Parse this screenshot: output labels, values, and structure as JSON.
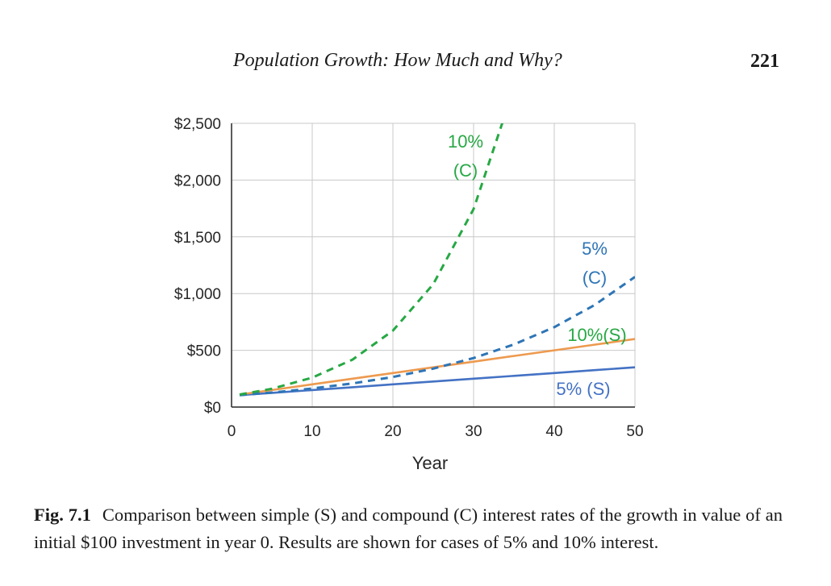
{
  "page": {
    "running_head": "Population Growth: How Much and Why?",
    "page_number": "221"
  },
  "caption": {
    "label": "Fig. 7.1",
    "text": "Comparison between simple (S) and compound (C) interest rates of the growth in value of an initial $100 investment in year 0. Results are shown for cases of 5% and 10% interest."
  },
  "chart_data": {
    "type": "line",
    "title": "",
    "xlabel": "Year",
    "ylabel": "",
    "xlim": [
      0,
      50
    ],
    "ylim": [
      0,
      2500
    ],
    "grid": true,
    "legend": "inline labels",
    "x_ticks": [
      0,
      10,
      20,
      30,
      40,
      50
    ],
    "x_tick_labels": [
      "0",
      "10",
      "20",
      "30",
      "40",
      "50"
    ],
    "y_ticks": [
      0,
      500,
      1000,
      1500,
      2000,
      2500
    ],
    "y_tick_labels": [
      "$0",
      "$500",
      "$1,000",
      "$1,500",
      "$2,000",
      "$2,500"
    ],
    "x": [
      1,
      5,
      10,
      15,
      20,
      25,
      30,
      35,
      40,
      45,
      50
    ],
    "series": [
      {
        "name": "5% (S)",
        "label_lines": [
          "5% (S)"
        ],
        "color": "#4472c4",
        "dash": "solid",
        "values": [
          105,
          125,
          150,
          175,
          200,
          225,
          250,
          275,
          300,
          325,
          350
        ]
      },
      {
        "name": "10%(S)",
        "label_lines": [
          "10%(S)"
        ],
        "color": "#ed9a4f",
        "label_color": "#27a844",
        "dash": "solid",
        "values": [
          110,
          150,
          200,
          250,
          300,
          350,
          400,
          450,
          500,
          550,
          600
        ]
      },
      {
        "name": "5% (C)",
        "label_lines": [
          "5%",
          "(C)"
        ],
        "color": "#2e75b6",
        "dash": "dashed",
        "values": [
          105,
          128,
          163,
          208,
          265,
          339,
          432,
          552,
          704,
          899,
          1147
        ]
      },
      {
        "name": "10% (C)",
        "label_lines": [
          "10%",
          "(C)"
        ],
        "color": "#27a844",
        "dash": "dashed",
        "values": [
          110,
          161,
          259,
          418,
          673,
          1083,
          1745,
          2810,
          null,
          null,
          null
        ]
      }
    ]
  }
}
